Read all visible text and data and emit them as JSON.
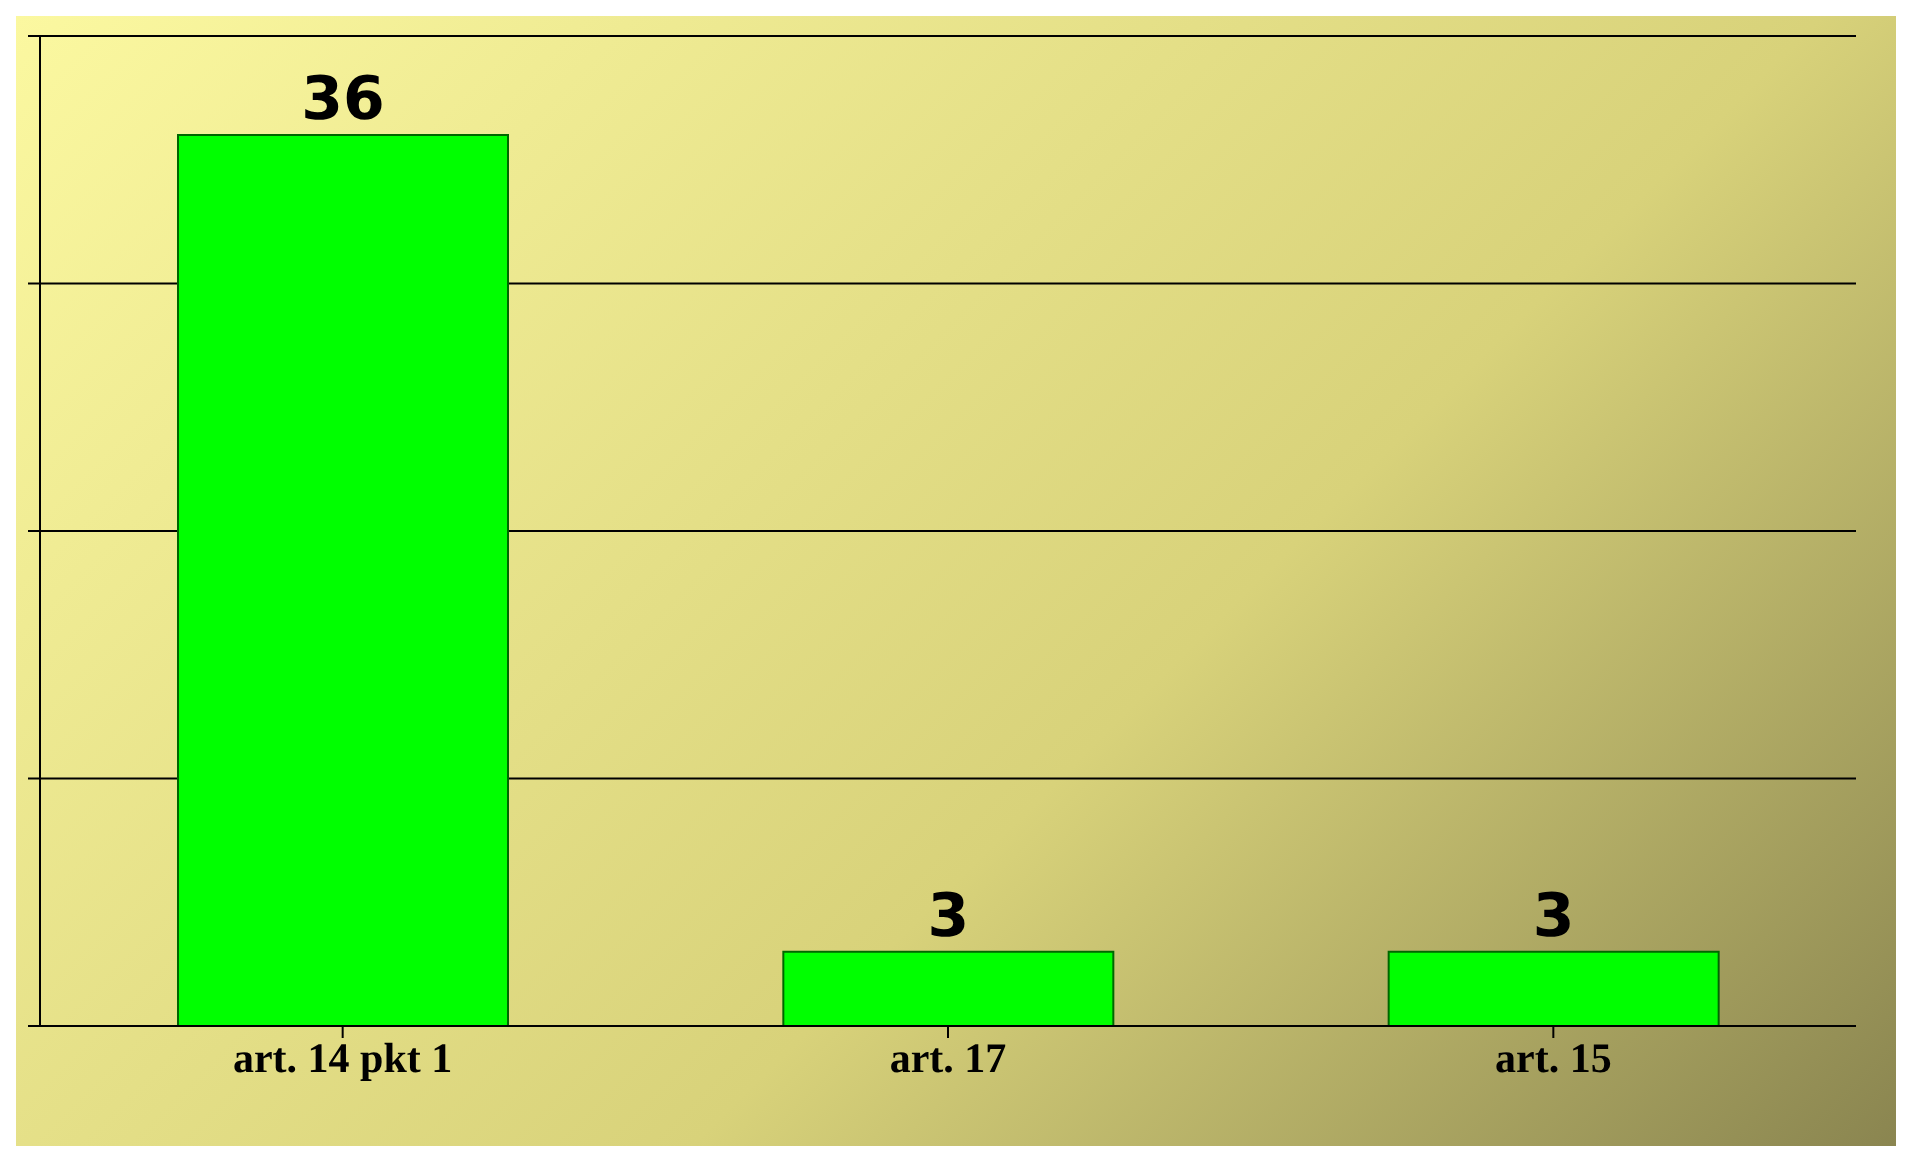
{
  "chart_data": {
    "type": "bar",
    "categories": [
      "art. 14 pkt 1",
      "art. 17",
      "art. 15"
    ],
    "values": [
      36,
      3,
      3
    ],
    "color": "#00ff00",
    "ylim": [
      0,
      40
    ],
    "yticks": [
      {
        "value": 0,
        "label": null
      },
      {
        "value": 10,
        "label": null
      },
      {
        "value": 20,
        "label": null
      },
      {
        "value": 30,
        "label": null
      },
      {
        "value": 40,
        "label": null
      }
    ],
    "tick_labels": "x",
    "grid": "y",
    "data_labels": true
  }
}
